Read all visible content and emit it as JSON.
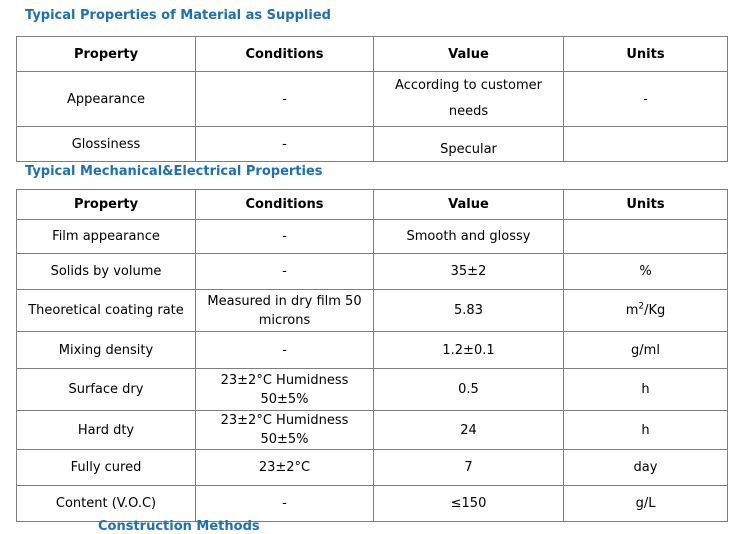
{
  "sections": [
    {
      "title": "Typical Properties of Material as Supplied",
      "headers": [
        "Property",
        "Conditions",
        "Value",
        "Units"
      ],
      "rows": [
        [
          "Appearance",
          "-",
          "According to customer needs",
          "-"
        ],
        [
          "Glossiness",
          "-",
          "Specular",
          ""
        ]
      ]
    },
    {
      "title": "Typical Mechanical&Electrical Properties",
      "headers": [
        "Property",
        "Conditions",
        "Value",
        "Units"
      ],
      "rows": [
        [
          "Film appearance",
          "-",
          "Smooth and glossy",
          ""
        ],
        [
          "Solids by volume",
          "-",
          "35±2",
          "%"
        ],
        [
          "Theoretical coating rate",
          "Measured in dry film 50 microns",
          "5.83",
          "m²/Kg"
        ],
        [
          "Mixing density",
          "-",
          "1.2±0.1",
          "g/ml"
        ],
        [
          "Surface dry",
          "23±2°C Humidness 50±5%",
          "0.5",
          "h"
        ],
        [
          "Hard dty",
          "23±2°C Humidness 50±5%",
          "24",
          "h"
        ],
        [
          "Fully cured",
          "23±2°C",
          "7",
          "day"
        ],
        [
          "Content (V.O.C)",
          "-",
          "≤150",
          "g/L"
        ]
      ]
    }
  ],
  "footer_partial_title": "Construction Methods"
}
